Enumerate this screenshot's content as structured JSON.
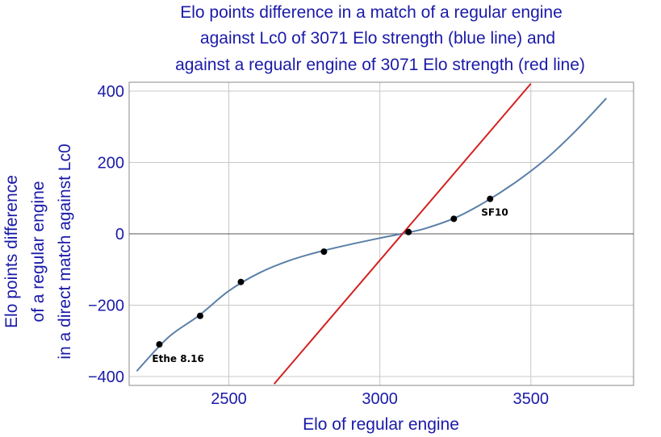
{
  "chart_data": {
    "type": "line",
    "title_lines": [
      "Elo points difference in a match of a regular engine",
      "against Lc0 of 3071 Elo strength (blue line) and",
      "against a regualr engine of 3071 Elo strength (red line)"
    ],
    "xlabel": "Elo of regular engine",
    "ylabel_lines": [
      "Elo points difference",
      "of a regular engine",
      "in a direct match against Lc0"
    ],
    "xlim": [
      2170,
      3840
    ],
    "ylim": [
      -425,
      425
    ],
    "x_ticks": [
      2500,
      3000,
      3500
    ],
    "y_ticks": [
      -400,
      -200,
      0,
      200,
      400
    ],
    "y_tick_labels": [
      "−400",
      "−200",
      "0",
      "200",
      "400"
    ],
    "grid": true,
    "colors": {
      "blue_line": "#5a7fa8",
      "red_line": "#d42020",
      "points": "#000000",
      "grid": "#c8c8c8",
      "text": "#1a1aa8"
    },
    "series": [
      {
        "x": [
          2195,
          2300,
          2400,
          2500,
          2600,
          2700,
          2800,
          2900,
          3000,
          3071,
          3150,
          3250,
          3350,
          3450,
          3550,
          3650,
          3750
        ],
        "y": [
          -385,
          -290,
          -230,
          -160,
          -110,
          -75,
          -50,
          -30,
          -12,
          0,
          15,
          45,
          90,
          145,
          210,
          290,
          380
        ]
      },
      {
        "x": [
          2650,
          3500
        ],
        "y": [
          -421,
          421
        ]
      },
      {
        "x": [
          2270,
          2405,
          2540,
          2815,
          3095,
          3245,
          3365
        ],
        "y": [
          -310,
          -230,
          -135,
          -50,
          5,
          42,
          98
        ]
      }
    ],
    "annotations": [
      {
        "text": "Ethe 8.16",
        "x": 2270,
        "y": -310
      },
      {
        "text": "SF10",
        "x": 3365,
        "y": 98
      }
    ]
  }
}
